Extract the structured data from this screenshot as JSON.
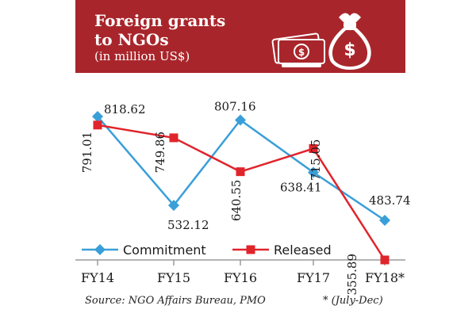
{
  "header": {
    "title_line1": "Foreign grants",
    "title_line2": "to NGOs",
    "subtitle": "(in million US$)",
    "icon": "money-bag-with-dollar-and-cash-icon",
    "icon_symbol": "$"
  },
  "colors": {
    "header_bg": "#a8262b",
    "commitment": "#3a9fd8",
    "released": "#e0242b"
  },
  "footer": {
    "source": "Source: NGO Affairs Bureau, PMO",
    "note": "* (July-Dec)"
  },
  "chart_data": {
    "type": "line",
    "categories": [
      "FY14",
      "FY15",
      "FY16",
      "FY17",
      "FY18*"
    ],
    "series": [
      {
        "name": "Commitment",
        "values": [
          818.62,
          532.12,
          807.16,
          638.41,
          483.74
        ],
        "labels": [
          "818.62",
          "532.12",
          "807.16",
          "638.41",
          "483.74"
        ],
        "marker": "diamond"
      },
      {
        "name": "Released",
        "values": [
          791.01,
          749.86,
          640.55,
          715.05,
          355.89
        ],
        "labels": [
          "791.01",
          "749.86",
          "640.55",
          "715.05",
          "355.89"
        ],
        "marker": "square"
      }
    ],
    "legend_position": "bottom",
    "grid": false
  }
}
